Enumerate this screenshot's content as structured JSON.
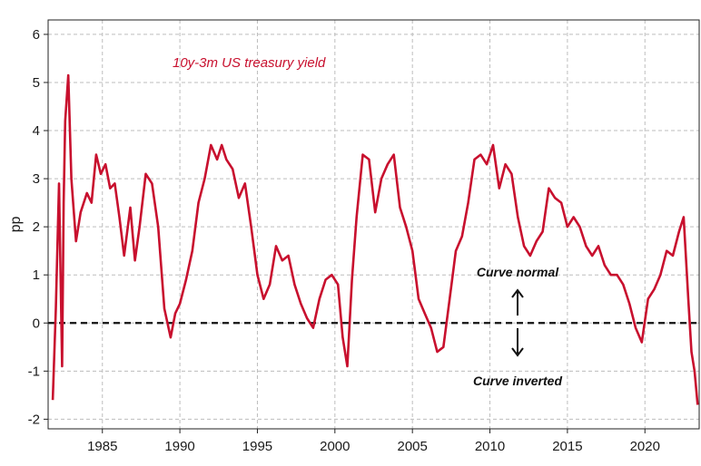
{
  "chart_data": {
    "type": "line",
    "title": "",
    "xlabel": "",
    "ylabel": "pp",
    "xlim": [
      1981.5,
      2023.5
    ],
    "ylim": [
      -2.2,
      6.3
    ],
    "x_ticks": [
      1985,
      1990,
      1995,
      2000,
      2005,
      2010,
      2015,
      2020
    ],
    "y_ticks": [
      -2,
      -1,
      0,
      1,
      2,
      3,
      4,
      5,
      6
    ],
    "grid": true,
    "legend": "none",
    "colors": {
      "series": "#c8102e",
      "zero_line": "#111111"
    },
    "series": [
      {
        "name": "10y-3m US treasury yield",
        "x": [
          1981.8,
          1982.0,
          1982.2,
          1982.4,
          1982.5,
          1982.6,
          1982.8,
          1983.0,
          1983.3,
          1983.6,
          1984.0,
          1984.3,
          1984.6,
          1984.9,
          1985.2,
          1985.5,
          1985.8,
          1986.1,
          1986.4,
          1986.8,
          1987.1,
          1987.4,
          1987.8,
          1988.2,
          1988.6,
          1989.0,
          1989.4,
          1989.7,
          1990.0,
          1990.4,
          1990.8,
          1991.2,
          1991.6,
          1992.0,
          1992.4,
          1992.7,
          1993.0,
          1993.4,
          1993.8,
          1994.2,
          1994.6,
          1995.0,
          1995.4,
          1995.8,
          1996.2,
          1996.6,
          1997.0,
          1997.4,
          1997.8,
          1998.2,
          1998.6,
          1999.0,
          1999.4,
          1999.8,
          2000.2,
          2000.5,
          2000.8,
          2001.1,
          2001.4,
          2001.8,
          2002.2,
          2002.6,
          2003.0,
          2003.4,
          2003.8,
          2004.2,
          2004.6,
          2005.0,
          2005.4,
          2005.8,
          2006.2,
          2006.6,
          2007.0,
          2007.4,
          2007.8,
          2008.2,
          2008.6,
          2009.0,
          2009.4,
          2009.8,
          2010.2,
          2010.6,
          2011.0,
          2011.4,
          2011.8,
          2012.2,
          2012.6,
          2013.0,
          2013.4,
          2013.8,
          2014.2,
          2014.6,
          2015.0,
          2015.4,
          2015.8,
          2016.2,
          2016.6,
          2017.0,
          2017.4,
          2017.8,
          2018.2,
          2018.6,
          2019.0,
          2019.4,
          2019.8,
          2020.2,
          2020.6,
          2021.0,
          2021.4,
          2021.8,
          2022.2,
          2022.5,
          2022.8,
          2023.0,
          2023.2,
          2023.4
        ],
        "y": [
          -1.6,
          0.3,
          2.9,
          -0.9,
          2.5,
          4.2,
          5.15,
          3.0,
          1.7,
          2.3,
          2.7,
          2.5,
          3.5,
          3.1,
          3.3,
          2.8,
          2.9,
          2.2,
          1.4,
          2.4,
          1.3,
          2.0,
          3.1,
          2.9,
          2.0,
          0.3,
          -0.3,
          0.2,
          0.4,
          0.9,
          1.5,
          2.5,
          3.0,
          3.7,
          3.4,
          3.7,
          3.4,
          3.2,
          2.6,
          2.9,
          2.0,
          1.0,
          0.5,
          0.8,
          1.6,
          1.3,
          1.4,
          0.8,
          0.4,
          0.1,
          -0.1,
          0.5,
          0.9,
          1.0,
          0.8,
          -0.3,
          -0.9,
          0.9,
          2.2,
          3.5,
          3.4,
          2.3,
          3.0,
          3.3,
          3.5,
          2.4,
          2.0,
          1.5,
          0.5,
          0.2,
          -0.1,
          -0.6,
          -0.5,
          0.5,
          1.5,
          1.8,
          2.5,
          3.4,
          3.5,
          3.3,
          3.7,
          2.8,
          3.3,
          3.1,
          2.2,
          1.6,
          1.4,
          1.7,
          1.9,
          2.8,
          2.6,
          2.5,
          2.0,
          2.2,
          2.0,
          1.6,
          1.4,
          1.6,
          1.2,
          1.0,
          1.0,
          0.8,
          0.4,
          -0.1,
          -0.4,
          0.5,
          0.7,
          1.0,
          1.5,
          1.4,
          1.9,
          2.2,
          0.5,
          -0.6,
          -1.0,
          -1.7
        ]
      }
    ],
    "annotations": [
      {
        "text": "10y-3m US treasury yield",
        "role": "series-label"
      },
      {
        "text": "Curve normal",
        "arrow": "up"
      },
      {
        "text": "Curve inverted",
        "arrow": "down"
      }
    ]
  }
}
